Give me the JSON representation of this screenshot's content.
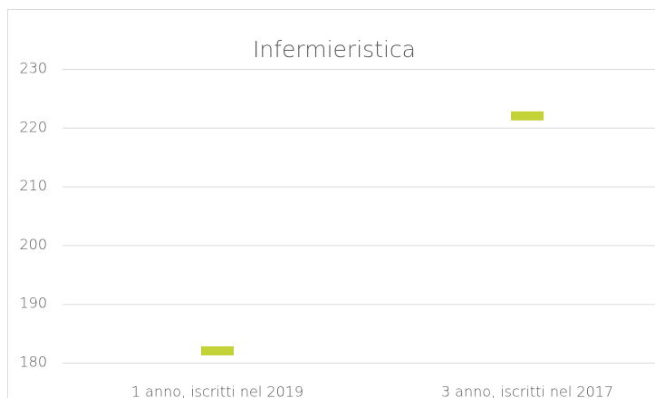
{
  "chart_data": {
    "type": "line",
    "title": "Infermieristica",
    "categories": [
      "1 anno, iscritti nel 2019",
      "3 anno, iscritti nel 2017"
    ],
    "series": [
      {
        "name": "Infermieristica",
        "color": "#c3d237",
        "values": [
          182,
          222
        ]
      }
    ],
    "connect_points": false,
    "marker": "dash",
    "ylim": [
      180,
      230
    ],
    "yticks": [
      180,
      190,
      200,
      210,
      220,
      230
    ],
    "grid": true
  }
}
